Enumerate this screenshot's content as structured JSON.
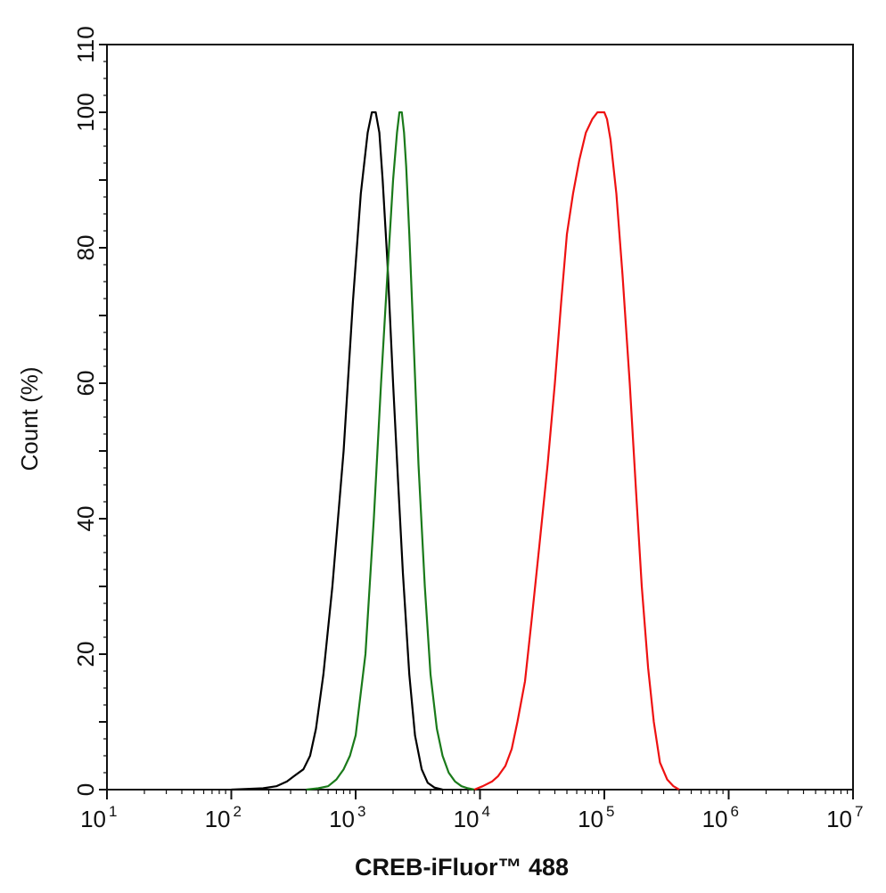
{
  "chart_data": {
    "type": "line",
    "xlabel": "CREB-iFluor™ 488",
    "ylabel": "Count  (%)",
    "x_scale": "log",
    "xlim": [
      10,
      10000000
    ],
    "ylim": [
      0,
      110
    ],
    "x_ticks": [
      {
        "base": "10",
        "exp": "1",
        "value": 10
      },
      {
        "base": "10",
        "exp": "2",
        "value": 100
      },
      {
        "base": "10",
        "exp": "3",
        "value": 1000
      },
      {
        "base": "10",
        "exp": "4",
        "value": 10000
      },
      {
        "base": "10",
        "exp": "5",
        "value": 100000
      },
      {
        "base": "10",
        "exp": "6",
        "value": 1000000
      },
      {
        "base": "10",
        "exp": "7",
        "value": 10000000
      }
    ],
    "y_ticks": [
      "0",
      "20",
      "40",
      "60",
      "80",
      "100",
      "110"
    ],
    "grid": false,
    "series": [
      {
        "color": "#000000",
        "x": [
          100,
          180,
          230,
          280,
          320,
          380,
          430,
          480,
          550,
          650,
          800,
          950,
          1100,
          1250,
          1350,
          1450,
          1550,
          1650,
          1800,
          2000,
          2200,
          2400,
          2700,
          3000,
          3400,
          3800,
          4300,
          5000
        ],
        "y": [
          0,
          0.2,
          0.5,
          1.2,
          2,
          3,
          5,
          9,
          17,
          30,
          50,
          72,
          88,
          97,
          100,
          100,
          97,
          90,
          78,
          60,
          45,
          32,
          17,
          8,
          3,
          1,
          0.3,
          0
        ]
      },
      {
        "color": "#1a7a1a",
        "x": [
          400,
          500,
          600,
          700,
          800,
          900,
          1000,
          1200,
          1400,
          1600,
          1800,
          2000,
          2150,
          2250,
          2350,
          2450,
          2550,
          2700,
          2900,
          3200,
          3600,
          4000,
          4500,
          5000,
          5600,
          6300,
          7100,
          8000,
          9000
        ],
        "y": [
          0,
          0.2,
          0.5,
          1.5,
          3,
          5,
          8,
          20,
          40,
          60,
          76,
          90,
          97,
          100,
          100,
          97,
          92,
          82,
          68,
          48,
          30,
          17,
          9,
          5,
          2.5,
          1.2,
          0.5,
          0.2,
          0
        ]
      },
      {
        "color": "#ee1111",
        "x": [
          9000,
          10500,
          12500,
          14000,
          16000,
          18000,
          20000,
          23000,
          26000,
          30000,
          35000,
          40000,
          45000,
          50000,
          56000,
          63000,
          71000,
          80000,
          88000,
          95000,
          100000,
          105000,
          112000,
          125000,
          140000,
          160000,
          180000,
          200000,
          225000,
          250000,
          280000,
          320000,
          360000,
          400000
        ],
        "y": [
          0,
          0.5,
          1.2,
          2,
          3.5,
          6,
          10,
          16,
          25,
          36,
          48,
          60,
          72,
          82,
          88,
          93,
          97,
          99,
          100,
          100,
          100,
          99,
          96,
          88,
          76,
          60,
          44,
          30,
          18,
          10,
          4,
          1.5,
          0.5,
          0
        ]
      }
    ]
  }
}
